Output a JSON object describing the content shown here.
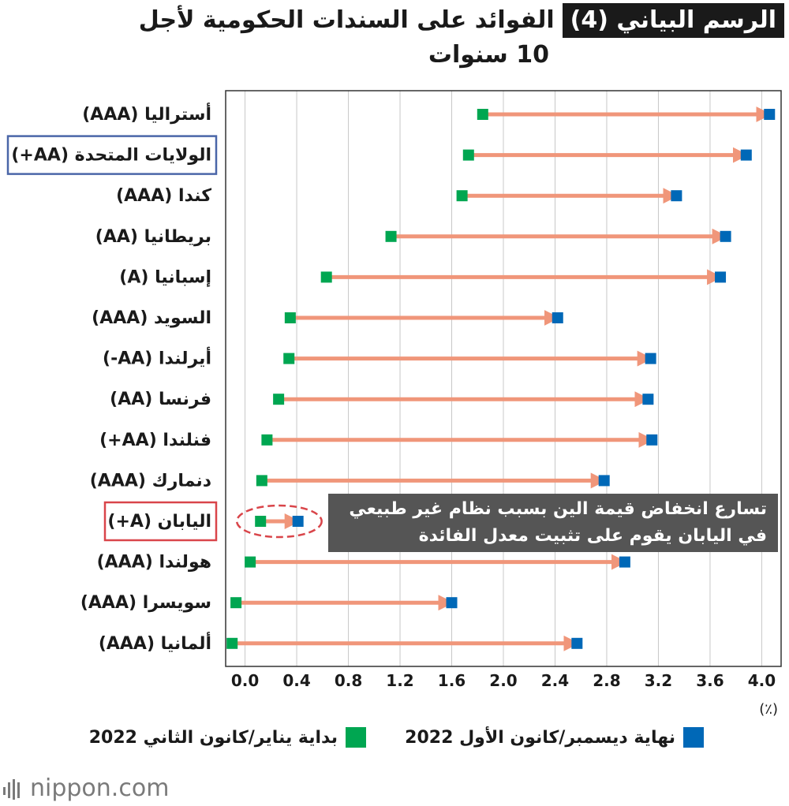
{
  "title": {
    "badge": "الرسم البياني (4)",
    "text": "الفوائد على السندات الحكومية لأجل",
    "line2": "10 سنوات"
  },
  "colors": {
    "start": "#00a651",
    "end": "#0068b7",
    "arrow": "#f0967a",
    "us_box": "#4a66a8",
    "japan_box": "#d9454a",
    "callout_bg": "#555555"
  },
  "callout": {
    "line1": "تسارع انخفاض قيمة الين بسبب نظام غير طبيعي",
    "line2": "في اليابان يقوم على تثبيت معدل الفائدة"
  },
  "legend": {
    "end_label": "نهاية ديسمبر/كانون الأول 2022",
    "start_label": "بداية يناير/كانون الثاني 2022"
  },
  "unit": "(٪)",
  "logo": "nippon.com",
  "chart_data": {
    "type": "dumbbell",
    "xlim": [
      -0.15,
      4.15
    ],
    "ticks": [
      "0.0",
      "0.4",
      "0.8",
      "1.2",
      "1.6",
      "2.0",
      "2.4",
      "2.8",
      "3.2",
      "3.6",
      "4.0"
    ],
    "grid": true,
    "series": [
      {
        "name": "بداية يناير/كانون الثاني 2022",
        "role": "start"
      },
      {
        "name": "نهاية ديسمبر/كانون الأول 2022",
        "role": "end"
      }
    ],
    "countries": [
      {
        "label": "أستراليا (AAA)",
        "start": 1.84,
        "end": 4.06
      },
      {
        "label": "الولايات المتحدة (AA+)",
        "start": 1.73,
        "end": 3.88,
        "box": "us"
      },
      {
        "label": "كندا (AAA)",
        "start": 1.68,
        "end": 3.34
      },
      {
        "label": "بريطانيا (AA)",
        "start": 1.13,
        "end": 3.72
      },
      {
        "label": "إسبانيا (A)",
        "start": 0.63,
        "end": 3.68
      },
      {
        "label": "السويد (AAA)",
        "start": 0.35,
        "end": 2.42
      },
      {
        "label": "أيرلندا (AA-)",
        "start": 0.34,
        "end": 3.14
      },
      {
        "label": "فرنسا (AA)",
        "start": 0.26,
        "end": 3.12
      },
      {
        "label": "فنلندا (AA+)",
        "start": 0.17,
        "end": 3.15
      },
      {
        "label": "دنمارك (AAA)",
        "start": 0.13,
        "end": 2.78
      },
      {
        "label": "اليابان (A+)",
        "start": 0.12,
        "end": 0.41,
        "box": "japan"
      },
      {
        "label": "هولندا (AAA)",
        "start": 0.04,
        "end": 2.94
      },
      {
        "label": "سويسرا (AAA)",
        "start": -0.07,
        "end": 1.6
      },
      {
        "label": "ألمانيا (AAA)",
        "start": -0.1,
        "end": 2.57
      }
    ]
  }
}
